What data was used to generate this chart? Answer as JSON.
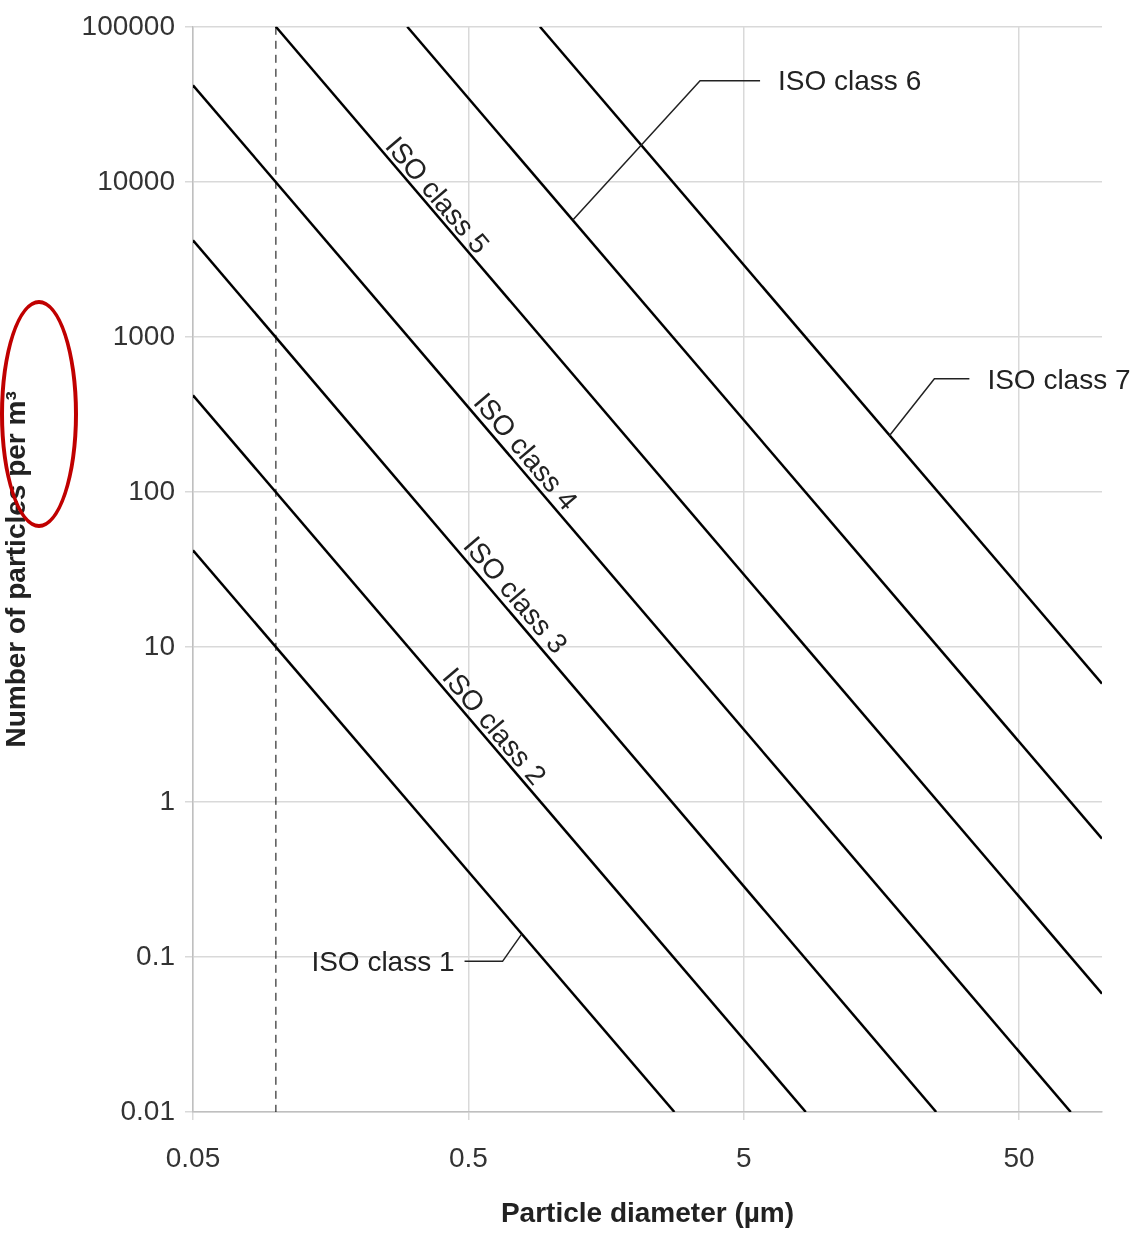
{
  "chart_data": {
    "type": "line",
    "xlabel": "Particle diameter (µm)",
    "ylabel": "Number of particles per m³",
    "log": "xy",
    "xlim": [
      0.05,
      100
    ],
    "ylim": [
      0.01,
      100000
    ],
    "xticks": [
      0.05,
      0.5,
      5,
      50
    ],
    "yticks": [
      0.01,
      0.1,
      1,
      10,
      100,
      1000,
      10000,
      100000
    ],
    "grid": true,
    "legend": false,
    "marker": "none",
    "line_style": "solid",
    "ref_lines": [
      {
        "axis": "x",
        "value": 0.1,
        "line_style": "dashed",
        "color": "#000000"
      }
    ],
    "annotations": [
      {
        "text": "ISO class 1",
        "x": 0.78,
        "y": 0.14
      },
      {
        "text": "ISO class 2",
        "x": 0.57,
        "y": 2.7
      },
      {
        "text": "ISO class 3",
        "x": 0.68,
        "y": 19
      },
      {
        "text": "ISO class 4",
        "x": 0.74,
        "y": 160
      },
      {
        "text": "ISO class 5",
        "x": 0.354,
        "y": 7200
      },
      {
        "text": "ISO class 6",
        "x": 1.2,
        "y": 5700
      },
      {
        "text": "ISO class 7",
        "x": 16.9,
        "y": 230
      }
    ],
    "series": [
      {
        "color": "#000000",
        "x": [
          0.05,
          2.8
        ],
        "values": [
          42,
          0.01
        ]
      },
      {
        "color": "#000000",
        "x": [
          0.05,
          8.4
        ],
        "values": [
          420,
          0.01
        ]
      },
      {
        "color": "#000000",
        "x": [
          0.05,
          25
        ],
        "values": [
          4200,
          0.01
        ]
      },
      {
        "color": "#000000",
        "x": [
          0.05,
          77
        ],
        "values": [
          42000,
          0.01
        ]
      },
      {
        "color": "#000000",
        "x": [
          0.1,
          100
        ],
        "values": [
          100000,
          0.058
        ]
      },
      {
        "color": "#000000",
        "x": [
          0.3,
          100
        ],
        "values": [
          100000,
          0.58
        ]
      },
      {
        "color": "#000000",
        "x": [
          0.91,
          100
        ],
        "values": [
          100000,
          5.8
        ]
      }
    ]
  }
}
